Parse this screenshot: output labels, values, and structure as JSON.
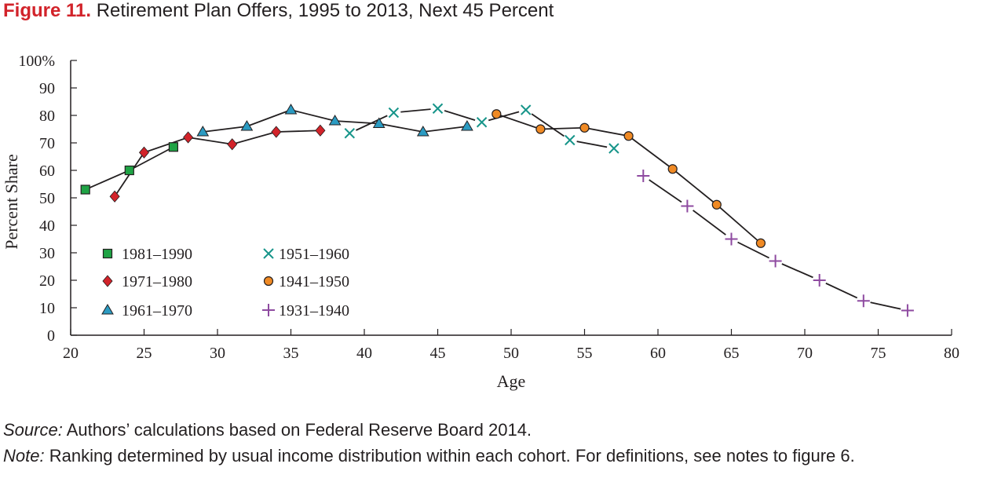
{
  "figure": {
    "number": "Figure 11.",
    "title": "Retirement Plan Offers, 1995 to 2013, Next 45 Percent"
  },
  "source": {
    "lead": "Source:",
    "text": "Authors’ calculations based on Federal Reserve Board 2014."
  },
  "note": {
    "lead": "Note:",
    "text": "Ranking determined by usual income distribution within each cohort. For definitions, see notes to figure 6."
  },
  "chart_data": {
    "type": "line",
    "xlabel": "Age",
    "ylabel": "Percent Share",
    "xlim": [
      20,
      80
    ],
    "ylim": [
      0,
      100
    ],
    "x_ticks": [
      20,
      25,
      30,
      35,
      40,
      45,
      50,
      55,
      60,
      65,
      70,
      75,
      80
    ],
    "y_ticks": [
      0,
      10,
      20,
      30,
      40,
      50,
      60,
      70,
      80,
      90,
      100
    ],
    "y_tick_labels": [
      "0",
      "10",
      "20",
      "30",
      "40",
      "50",
      "60",
      "70",
      "80",
      "90",
      "100%"
    ],
    "grid": false,
    "series": [
      {
        "name": "1981–1990",
        "marker": "square",
        "color": "#1fa345",
        "x": [
          21,
          24,
          27
        ],
        "y": [
          53,
          60,
          68.5
        ]
      },
      {
        "name": "1971–1980",
        "marker": "diamond",
        "color": "#d2232a",
        "x": [
          23,
          25,
          28,
          31,
          34,
          37
        ],
        "y": [
          50.5,
          66.5,
          72,
          69.5,
          74,
          74.5
        ]
      },
      {
        "name": "1961–1970",
        "marker": "triangle",
        "color": "#2b9bc2",
        "x": [
          29,
          32,
          35,
          38,
          41,
          44,
          47
        ],
        "y": [
          74,
          76,
          82,
          78,
          77,
          74,
          76
        ]
      },
      {
        "name": "1951–1960",
        "marker": "x",
        "color": "#17958a",
        "x": [
          39,
          42,
          45,
          48,
          51,
          54,
          57
        ],
        "y": [
          73.5,
          81,
          82.5,
          77.5,
          82,
          71,
          68
        ]
      },
      {
        "name": "1941–1950",
        "marker": "circle",
        "color": "#f08a24",
        "x": [
          49,
          52,
          55,
          58,
          61,
          64,
          67
        ],
        "y": [
          80.5,
          75,
          75.5,
          72.5,
          60.5,
          47.5,
          33.5
        ]
      },
      {
        "name": "1931–1940",
        "marker": "plus",
        "color": "#8e4aa0",
        "x": [
          59,
          62,
          65,
          68,
          71,
          74,
          77
        ],
        "y": [
          58,
          47,
          35,
          27,
          20,
          12.5,
          9
        ]
      }
    ],
    "legend": {
      "position": "lower-left",
      "columns": 2
    }
  }
}
